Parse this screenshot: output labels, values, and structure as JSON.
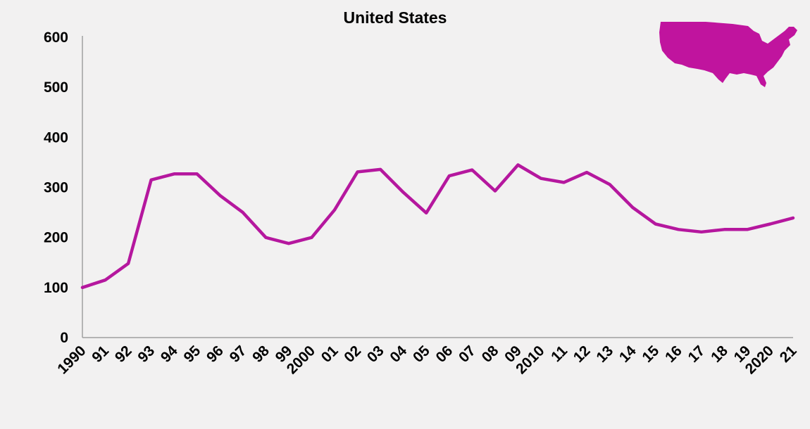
{
  "chart_data": {
    "type": "line",
    "title": "United States",
    "xlabel": "",
    "ylabel": "",
    "categories": [
      "1990",
      "91",
      "92",
      "93",
      "94",
      "95",
      "96",
      "97",
      "98",
      "99",
      "2000",
      "01",
      "02",
      "03",
      "04",
      "05",
      "06",
      "07",
      "08",
      "09",
      "2010",
      "11",
      "12",
      "13",
      "14",
      "15",
      "16",
      "17",
      "18",
      "19",
      "2020",
      "21"
    ],
    "series": [
      {
        "values": [
          100,
          115,
          148,
          315,
          327,
          327,
          284,
          250,
          200,
          188,
          200,
          255,
          331,
          336,
          290,
          249,
          323,
          335,
          293,
          345,
          318,
          310,
          330,
          306,
          260,
          227,
          216,
          211,
          216,
          216,
          227,
          239
        ]
      }
    ],
    "ylim": [
      0,
      600
    ],
    "yticks": [
      0,
      100,
      200,
      300,
      400,
      500,
      600
    ],
    "grid": false,
    "legend": "none",
    "line_color": "#b5179e",
    "map_color": "#c0149e",
    "axis_color": "#a0a0a0",
    "background": "#f2f1f1",
    "map_icon": "us-map-icon"
  }
}
